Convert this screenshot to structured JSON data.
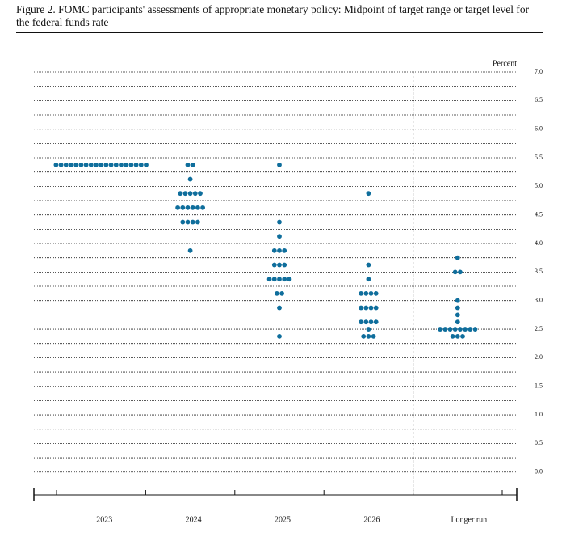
{
  "chart_data": {
    "type": "dot",
    "title": "Figure 2.  FOMC participants' assessments of appropriate monetary policy: Midpoint of target range or target level for the federal funds rate",
    "y_label": "Percent",
    "categories": [
      "2023",
      "2024",
      "2025",
      "2026",
      "Longer run"
    ],
    "color": "#0f6e9c",
    "values": [
      [
        5.375,
        5.375,
        5.375,
        5.375,
        5.375,
        5.375,
        5.375,
        5.375,
        5.375,
        5.375,
        5.375,
        5.375,
        5.375,
        5.375,
        5.375,
        5.375,
        5.375,
        5.375,
        5.375
      ],
      [
        5.375,
        5.375,
        5.125,
        4.875,
        4.875,
        4.875,
        4.875,
        4.875,
        4.625,
        4.625,
        4.625,
        4.625,
        4.625,
        4.625,
        4.375,
        4.375,
        4.375,
        4.375,
        3.875
      ],
      [
        5.375,
        4.375,
        4.125,
        3.875,
        3.875,
        3.875,
        3.625,
        3.625,
        3.625,
        3.375,
        3.375,
        3.375,
        3.375,
        3.375,
        3.125,
        3.125,
        2.875,
        2.375
      ],
      [
        4.875,
        3.625,
        3.375,
        3.125,
        3.125,
        3.125,
        3.125,
        2.875,
        2.875,
        2.875,
        2.875,
        2.625,
        2.625,
        2.625,
        2.625,
        2.5,
        2.375,
        2.375,
        2.375
      ],
      [
        3.75,
        3.5,
        3.5,
        3.0,
        2.875,
        2.75,
        2.625,
        2.5,
        2.5,
        2.5,
        2.5,
        2.5,
        2.5,
        2.5,
        2.5,
        2.375,
        2.375,
        2.375
      ]
    ],
    "ylim": [
      -0.4,
      7.0
    ],
    "yticks": [
      {
        "value": 0,
        "label": "0.0"
      },
      {
        "value": 0.5,
        "label": "0.5"
      },
      {
        "value": 1,
        "label": "1.0"
      },
      {
        "value": 1.5,
        "label": "1.5"
      },
      {
        "value": 2,
        "label": "2.0"
      },
      {
        "value": 2.5,
        "label": "2.5"
      },
      {
        "value": 3,
        "label": "3.0"
      },
      {
        "value": 3.5,
        "label": "3.5"
      },
      {
        "value": 4,
        "label": "4.0"
      },
      {
        "value": 4.5,
        "label": "4.5"
      },
      {
        "value": 5,
        "label": "5.0"
      },
      {
        "value": 5.5,
        "label": "5.5"
      },
      {
        "value": 6,
        "label": "6.0"
      },
      {
        "value": 6.5,
        "label": "6.5"
      },
      {
        "value": 7,
        "label": "7.0"
      }
    ],
    "minor_yticks": [
      0.25,
      0.75,
      1.25,
      1.75,
      2.25,
      2.75,
      3.25,
      3.75,
      4.25,
      4.75,
      5.25,
      5.75,
      6.25,
      6.75
    ],
    "grid": true
  }
}
